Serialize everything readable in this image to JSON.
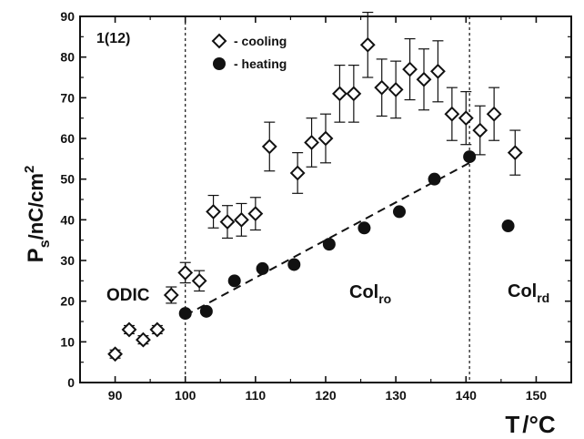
{
  "chart_data": {
    "type": "scatter",
    "panel_label": "1(12)",
    "xlabel": {
      "main": "T",
      "unit": "/°C"
    },
    "ylabel": {
      "main": "P",
      "sub": "s",
      "unit": "/nC/cm",
      "sup": "2"
    },
    "xlim": [
      85,
      155
    ],
    "ylim": [
      0,
      90
    ],
    "xticks": [
      90,
      100,
      110,
      120,
      130,
      140,
      150
    ],
    "yticks": [
      0,
      10,
      20,
      30,
      40,
      50,
      60,
      70,
      80,
      90
    ],
    "vertical_lines_x": [
      100,
      140.5
    ],
    "phase_labels": [
      {
        "main": "ODIC",
        "sub": ""
      },
      {
        "main": "Col",
        "sub": "ro"
      },
      {
        "main": "Col",
        "sub": "rd"
      }
    ],
    "series": [
      {
        "name": "- cooling",
        "marker": "open-diamond",
        "points": [
          {
            "x": 90,
            "y": 7,
            "err": 1
          },
          {
            "x": 92,
            "y": 13,
            "err": 1
          },
          {
            "x": 94,
            "y": 10.5,
            "err": 1
          },
          {
            "x": 96,
            "y": 13,
            "err": 1
          },
          {
            "x": 98,
            "y": 21.5,
            "err": 2
          },
          {
            "x": 100,
            "y": 27,
            "err": 2.5
          },
          {
            "x": 102,
            "y": 25,
            "err": 2.5
          },
          {
            "x": 104,
            "y": 42,
            "err": 4
          },
          {
            "x": 106,
            "y": 39.5,
            "err": 4
          },
          {
            "x": 108,
            "y": 40,
            "err": 4
          },
          {
            "x": 110,
            "y": 41.5,
            "err": 4
          },
          {
            "x": 112,
            "y": 58,
            "err": 6
          },
          {
            "x": 116,
            "y": 51.5,
            "err": 5
          },
          {
            "x": 118,
            "y": 59,
            "err": 6
          },
          {
            "x": 120,
            "y": 60,
            "err": 6
          },
          {
            "x": 122,
            "y": 71,
            "err": 7
          },
          {
            "x": 124,
            "y": 71,
            "err": 7
          },
          {
            "x": 126,
            "y": 83,
            "err": 8
          },
          {
            "x": 128,
            "y": 72.5,
            "err": 7
          },
          {
            "x": 130,
            "y": 72,
            "err": 7
          },
          {
            "x": 132,
            "y": 77,
            "err": 7.5
          },
          {
            "x": 134,
            "y": 74.5,
            "err": 7.5
          },
          {
            "x": 136,
            "y": 76.5,
            "err": 7.5
          },
          {
            "x": 138,
            "y": 66,
            "err": 6.5
          },
          {
            "x": 140,
            "y": 65,
            "err": 6.5
          },
          {
            "x": 142,
            "y": 62,
            "err": 6
          },
          {
            "x": 144,
            "y": 66,
            "err": 6.5
          },
          {
            "x": 147,
            "y": 56.5,
            "err": 5.5
          }
        ]
      },
      {
        "name": "- heating",
        "marker": "filled-circle",
        "points": [
          {
            "x": 100,
            "y": 17
          },
          {
            "x": 103,
            "y": 17.5
          },
          {
            "x": 107,
            "y": 25
          },
          {
            "x": 111,
            "y": 28
          },
          {
            "x": 115.5,
            "y": 29
          },
          {
            "x": 120.5,
            "y": 34
          },
          {
            "x": 125.5,
            "y": 38
          },
          {
            "x": 130.5,
            "y": 42
          },
          {
            "x": 135.5,
            "y": 50
          },
          {
            "x": 140.5,
            "y": 55.5
          },
          {
            "x": 146,
            "y": 38.5
          }
        ]
      }
    ],
    "trend_line": {
      "style": "dashed",
      "from": [
        100,
        16.5
      ],
      "to": [
        140.5,
        54
      ]
    },
    "colors": {
      "ink": "#111111",
      "background": "#ffffff"
    }
  }
}
